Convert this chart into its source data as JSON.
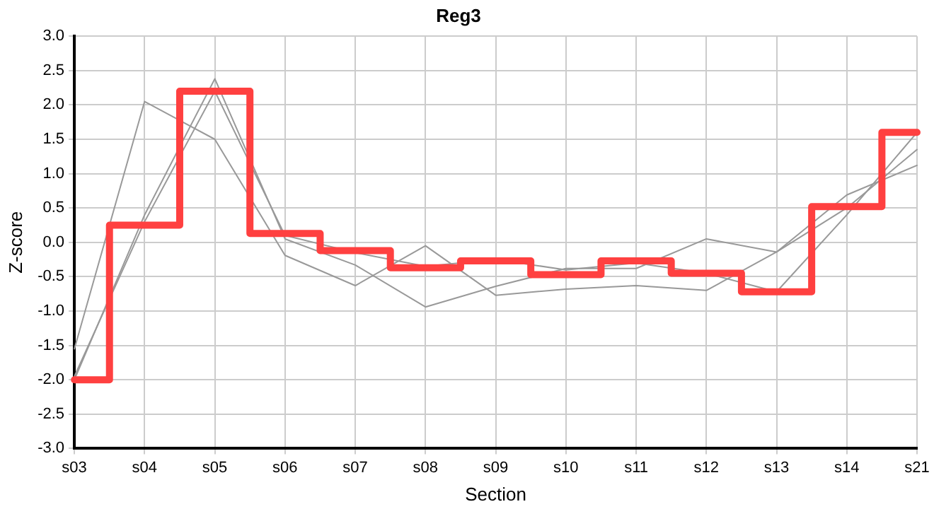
{
  "chart_data": {
    "type": "line",
    "title": "Reg3",
    "xlabel": "Section",
    "ylabel": "Z-score",
    "categories": [
      "s03",
      "s04",
      "s05",
      "s06",
      "s07",
      "s08",
      "s09",
      "s10",
      "s11",
      "s12",
      "s13",
      "s14",
      "s21"
    ],
    "ylim": [
      -3.0,
      3.0
    ],
    "yticks": [
      {
        "value": -3,
        "label": "-3.0"
      },
      {
        "value": -2.5,
        "label": "-2.5"
      },
      {
        "value": -2,
        "label": "-2.0"
      },
      {
        "value": -1.5,
        "label": "-1.5"
      },
      {
        "value": -1,
        "label": "-1.0"
      },
      {
        "value": -0.5,
        "label": "-0.5"
      },
      {
        "value": 0,
        "label": "0.0"
      },
      {
        "value": 0.5,
        "label": "0.5"
      },
      {
        "value": 1,
        "label": "1.0"
      },
      {
        "value": 1.5,
        "label": "1.5"
      },
      {
        "value": 2,
        "label": "2.0"
      },
      {
        "value": 2.5,
        "label": "2.5"
      },
      {
        "value": 3,
        "label": "3.0"
      }
    ],
    "grid": true,
    "legend": false,
    "marker": "none",
    "series": [
      {
        "color": "#999999",
        "values": [
          -1.55,
          2.05,
          1.5,
          -0.19,
          -0.63,
          -0.05,
          -0.77,
          -0.68,
          -0.63,
          -0.7,
          -0.14,
          0.69,
          1.12
        ]
      },
      {
        "color": "#999999",
        "values": [
          -2.0,
          0.4,
          2.38,
          0.05,
          -0.33,
          -0.94,
          -0.64,
          -0.38,
          -0.38,
          0.05,
          -0.14,
          0.5,
          1.35
        ]
      },
      {
        "color": "#999999",
        "values": [
          -1.95,
          0.3,
          2.2,
          0.1,
          -0.15,
          -0.35,
          -0.25,
          -0.4,
          -0.3,
          -0.45,
          -0.72,
          0.4,
          1.6
        ]
      },
      {
        "type": "step",
        "color": "#ff4040",
        "values": [
          -2.0,
          0.25,
          2.2,
          0.13,
          -0.12,
          -0.37,
          -0.27,
          -0.47,
          -0.27,
          -0.45,
          -0.72,
          0.52,
          1.6
        ]
      }
    ]
  }
}
